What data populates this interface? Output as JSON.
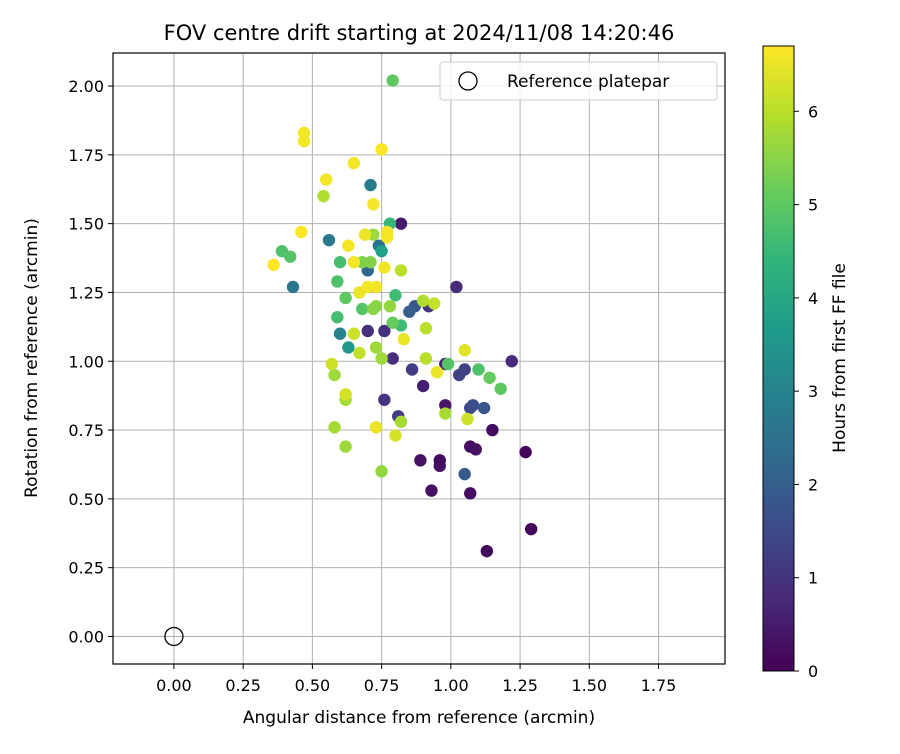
{
  "chart_data": {
    "type": "scatter",
    "title": "FOV centre drift starting at 2024/11/08 14:20:46",
    "xlabel": "Angular distance from reference (arcmin)",
    "ylabel": "Rotation from reference (arcmin)",
    "xlim": [
      -0.22,
      1.99
    ],
    "ylim": [
      -0.1,
      2.12
    ],
    "xticks": [
      0.0,
      0.25,
      0.5,
      0.75,
      1.0,
      1.25,
      1.5,
      1.75
    ],
    "xtick_labels": [
      "0.00",
      "0.25",
      "0.50",
      "0.75",
      "1.00",
      "1.25",
      "1.50",
      "1.75"
    ],
    "yticks": [
      0.0,
      0.25,
      0.5,
      0.75,
      1.0,
      1.25,
      1.5,
      1.75,
      2.0
    ],
    "ytick_labels": [
      "0.00",
      "0.25",
      "0.50",
      "0.75",
      "1.00",
      "1.25",
      "1.50",
      "1.75",
      "2.00"
    ],
    "grid": true,
    "legend": {
      "position": "top-right",
      "entries": [
        "Reference platepar"
      ]
    },
    "reference_point": {
      "x": 0.0,
      "y": 0.0,
      "marker": "hollow-circle",
      "edge_color": "#000000"
    },
    "colorbar": {
      "label": "Hours from first FF file",
      "colormap": "viridis",
      "range": [
        0,
        6.7
      ],
      "ticks": [
        0,
        1,
        2,
        3,
        4,
        5,
        6
      ],
      "tick_labels": [
        "0",
        "1",
        "2",
        "3",
        "4",
        "5",
        "6"
      ],
      "stops": [
        "#440154",
        "#482878",
        "#3e4989",
        "#31688e",
        "#26828e",
        "#1f9e89",
        "#35b779",
        "#6ece58",
        "#b5de2b",
        "#fde725"
      ]
    },
    "series": [
      {
        "points": [
          [
            1.29,
            0.39,
            0.1
          ],
          [
            1.13,
            0.31,
            0.15
          ],
          [
            1.27,
            0.67,
            0.1
          ],
          [
            1.15,
            0.75,
            0.2
          ],
          [
            1.07,
            0.52,
            0.2
          ],
          [
            1.07,
            0.69,
            0.25
          ],
          [
            1.09,
            0.68,
            0.3
          ],
          [
            0.93,
            0.53,
            0.3
          ],
          [
            0.96,
            0.62,
            0.35
          ],
          [
            0.96,
            0.64,
            0.2
          ],
          [
            0.89,
            0.64,
            0.3
          ],
          [
            0.98,
            0.84,
            0.4
          ],
          [
            0.82,
            1.5,
            0.5
          ],
          [
            1.22,
            1.0,
            0.8
          ],
          [
            1.02,
            1.27,
            0.8
          ],
          [
            0.98,
            0.99,
            0.6
          ],
          [
            0.9,
            0.91,
            0.6
          ],
          [
            0.79,
            1.01,
            0.9
          ],
          [
            0.76,
            1.11,
            0.9
          ],
          [
            0.7,
            1.11,
            0.9
          ],
          [
            0.92,
            1.2,
            1.0
          ],
          [
            0.76,
            0.86,
            1.0
          ],
          [
            0.81,
            0.8,
            1.2
          ],
          [
            0.86,
            0.97,
            1.2
          ],
          [
            1.03,
            0.95,
            1.3
          ],
          [
            1.05,
            0.97,
            1.3
          ],
          [
            1.07,
            0.83,
            1.5
          ],
          [
            1.08,
            0.84,
            1.6
          ],
          [
            1.12,
            0.83,
            1.8
          ],
          [
            1.05,
            0.59,
            1.9
          ],
          [
            0.87,
            1.2,
            1.8
          ],
          [
            0.85,
            1.18,
            2.0
          ],
          [
            0.7,
            1.33,
            2.2
          ],
          [
            0.74,
            1.42,
            2.5
          ],
          [
            0.56,
            1.44,
            2.7
          ],
          [
            0.43,
            1.27,
            2.6
          ],
          [
            0.71,
            1.64,
            2.8
          ],
          [
            0.6,
            1.1,
            3.0
          ],
          [
            0.63,
            1.05,
            3.6
          ],
          [
            0.75,
            1.4,
            3.8
          ],
          [
            0.78,
            1.5,
            4.5
          ],
          [
            0.82,
            1.13,
            4.6
          ],
          [
            0.8,
            1.24,
            4.6
          ],
          [
            0.6,
            1.36,
            4.7
          ],
          [
            0.59,
            1.16,
            4.7
          ],
          [
            0.59,
            1.29,
            4.8
          ],
          [
            0.39,
            1.4,
            4.8
          ],
          [
            0.42,
            1.38,
            4.9
          ],
          [
            0.68,
            1.19,
            4.9
          ],
          [
            0.79,
            1.14,
            5.1
          ],
          [
            0.62,
            1.23,
            5.0
          ],
          [
            0.79,
            2.02,
            5.0
          ],
          [
            1.1,
            0.97,
            4.8
          ],
          [
            0.99,
            0.99,
            4.9
          ],
          [
            1.14,
            0.94,
            5.1
          ],
          [
            1.18,
            0.9,
            5.0
          ],
          [
            0.71,
            1.36,
            5.4
          ],
          [
            0.68,
            1.36,
            5.4
          ],
          [
            0.72,
            1.19,
            5.5
          ],
          [
            0.73,
            1.2,
            5.5
          ],
          [
            0.78,
            1.2,
            5.6
          ],
          [
            0.73,
            1.05,
            5.7
          ],
          [
            0.75,
            1.01,
            5.7
          ],
          [
            0.58,
            0.95,
            5.7
          ],
          [
            0.58,
            0.76,
            5.8
          ],
          [
            0.62,
            0.69,
            5.7
          ],
          [
            0.62,
            0.86,
            5.8
          ],
          [
            0.75,
            0.6,
            5.6
          ],
          [
            0.82,
            0.78,
            5.8
          ],
          [
            0.98,
            0.81,
            5.8
          ],
          [
            0.72,
            1.46,
            5.7
          ],
          [
            0.54,
            1.6,
            5.9
          ],
          [
            0.82,
            1.33,
            6.0
          ],
          [
            0.9,
            1.22,
            5.9
          ],
          [
            0.91,
            1.12,
            6.0
          ],
          [
            0.91,
            1.01,
            6.0
          ],
          [
            0.94,
            1.21,
            6.1
          ],
          [
            0.67,
            1.03,
            6.1
          ],
          [
            0.65,
            1.1,
            6.2
          ],
          [
            0.57,
            0.99,
            6.2
          ],
          [
            0.62,
            0.88,
            6.3
          ],
          [
            0.8,
            0.73,
            6.3
          ],
          [
            1.06,
            0.79,
            6.2
          ],
          [
            1.05,
            1.04,
            6.4
          ],
          [
            0.95,
            0.96,
            6.5
          ],
          [
            0.83,
            1.08,
            6.5
          ],
          [
            0.73,
            0.76,
            6.5
          ],
          [
            0.67,
            1.25,
            6.5
          ],
          [
            0.69,
            1.46,
            6.5
          ],
          [
            0.7,
            1.27,
            6.6
          ],
          [
            0.73,
            1.27,
            6.6
          ],
          [
            0.76,
            1.34,
            6.6
          ],
          [
            0.77,
            1.47,
            6.6
          ],
          [
            0.65,
            1.36,
            6.6
          ],
          [
            0.63,
            1.42,
            6.6
          ],
          [
            0.72,
            1.57,
            6.6
          ],
          [
            0.65,
            1.72,
            6.6
          ],
          [
            0.55,
            1.66,
            6.6
          ],
          [
            0.47,
            1.83,
            6.6
          ],
          [
            0.47,
            1.8,
            6.6
          ],
          [
            0.46,
            1.47,
            6.7
          ],
          [
            0.36,
            1.35,
            6.7
          ],
          [
            0.75,
            1.77,
            6.7
          ],
          [
            0.77,
            1.45,
            6.6
          ]
        ]
      }
    ]
  }
}
